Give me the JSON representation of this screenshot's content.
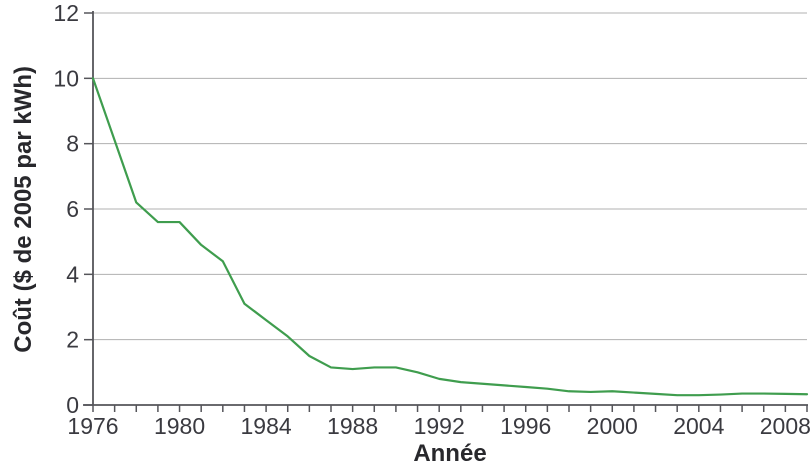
{
  "chart_data": {
    "type": "line",
    "title": "",
    "xlabel": "Année",
    "ylabel": "Coût ($ de 2005 par kWh)",
    "x": [
      1976,
      1977,
      1978,
      1979,
      1980,
      1981,
      1982,
      1983,
      1984,
      1985,
      1986,
      1987,
      1988,
      1989,
      1990,
      1991,
      1992,
      1993,
      1994,
      1995,
      1996,
      1997,
      1998,
      1999,
      2000,
      2001,
      2002,
      2003,
      2004,
      2005,
      2006,
      2007,
      2008,
      2009
    ],
    "series": [
      {
        "name": "",
        "color": "#3f9d4e",
        "values": [
          10.0,
          8.1,
          6.2,
          5.6,
          5.6,
          4.9,
          4.4,
          3.1,
          2.6,
          2.1,
          1.5,
          1.15,
          1.1,
          1.15,
          1.15,
          1.0,
          0.8,
          0.7,
          0.65,
          0.6,
          0.55,
          0.5,
          0.42,
          0.4,
          0.42,
          0.38,
          0.34,
          0.3,
          0.3,
          0.32,
          0.35,
          0.35,
          0.34,
          0.33
        ]
      }
    ],
    "xlim": [
      1976,
      2009
    ],
    "ylim": [
      0,
      12
    ],
    "yticks": [
      0,
      2,
      4,
      6,
      8,
      10,
      12
    ],
    "xtick_labels": [
      "1976",
      "1980",
      "1984",
      "1988",
      "1992",
      "1996",
      "2000",
      "2004",
      "2008"
    ],
    "xticks_every_year": true,
    "grid": "horizontal",
    "legend": "none"
  },
  "colors": {
    "line": "#3f9d4e",
    "grid": "#b0b0b0",
    "axis": "#55555a",
    "tick_text": "#3a3a40",
    "title_text": "#28282c",
    "background": "#ffffff"
  }
}
